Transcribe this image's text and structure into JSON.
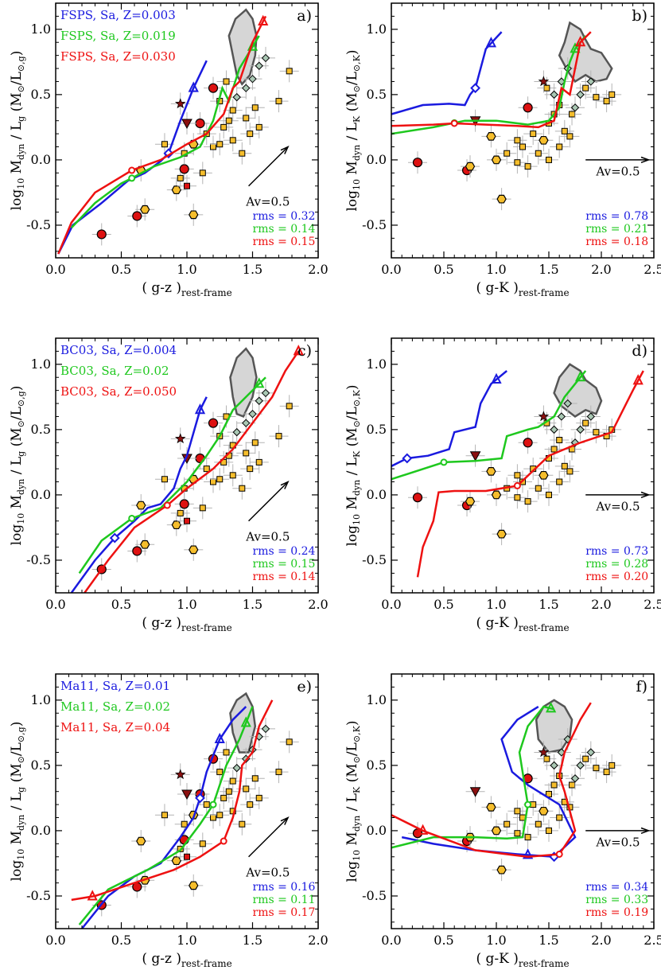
{
  "colors": {
    "blue": "#1a1adf",
    "green": "#1ec81e",
    "red": "#ee1111",
    "region": "#d6d6d6",
    "region_edge": "#555555",
    "galaxy": "#f6be2c",
    "errbar": "#b4b4b4"
  },
  "labels": {
    "xlabel_gz": "( g-z )",
    "xlabel_gK": "( g-K )",
    "x_sub": "rest-frame",
    "ylabel_g": "log10 Mdyn / Lg (M⊙/L⊙,g)",
    "ylabel_K": "log10 Mdyn / LK (M⊙/L⊙,K)",
    "av": "Av=0.5"
  },
  "chart_data": [
    {
      "panel": "a)",
      "type": "line",
      "xlabel": "( g-z )rest-frame",
      "ylabel": "log10 Mdyn / Lg (M⊙/L⊙,g)",
      "xlim": [
        0,
        2
      ],
      "ylim": [
        -0.75,
        1.2
      ],
      "xticks": [
        "0.0",
        "0.5",
        "1.0",
        "1.5",
        "2.0"
      ],
      "yticks": [
        "-0.5",
        "0.0",
        "0.5",
        "1.0"
      ],
      "legend": [
        "FSPS, Sa, Z=0.003",
        "FSPS, Sa, Z=0.019",
        "FSPS, Sa, Z=0.030"
      ],
      "rms": [
        "rms = 0.32",
        "rms = 0.14",
        "rms = 0.15"
      ],
      "series": [
        {
          "color": "blue",
          "x": [
            0.02,
            0.13,
            0.35,
            0.55,
            0.68,
            0.8,
            0.86,
            0.95,
            1.05,
            1.15
          ],
          "y": [
            -0.72,
            -0.5,
            -0.33,
            -0.16,
            -0.1,
            -0.01,
            0.05,
            0.3,
            0.55,
            0.76
          ],
          "marker_x": 0.86,
          "arrow_x": 1.05
        },
        {
          "color": "green",
          "x": [
            0.12,
            0.3,
            0.5,
            0.58,
            0.75,
            0.95,
            1.1,
            1.2,
            1.27,
            1.32,
            1.4,
            1.55
          ],
          "y": [
            -0.52,
            -0.33,
            -0.18,
            -0.14,
            -0.05,
            0.02,
            0.1,
            0.3,
            0.55,
            0.45,
            0.7,
            0.95
          ],
          "marker_x": 0.58,
          "arrow_x": 1.5
        },
        {
          "color": "red",
          "x": [
            0.02,
            0.12,
            0.3,
            0.58,
            0.8,
            1.0,
            1.15,
            1.28,
            1.35,
            1.4,
            1.5,
            1.6
          ],
          "y": [
            -0.72,
            -0.48,
            -0.25,
            -0.08,
            0.0,
            0.12,
            0.2,
            0.35,
            0.55,
            0.6,
            0.9,
            1.1
          ],
          "marker_x": 0.58,
          "arrow_x": 1.58
        }
      ],
      "av_vector": {
        "x0": 1.47,
        "y0": -0.2,
        "x1": 1.77,
        "y1": 0.1,
        "label": "Av=0.5"
      },
      "region": [
        [
          1.35,
          0.8
        ],
        [
          1.32,
          0.95
        ],
        [
          1.37,
          1.08
        ],
        [
          1.45,
          1.15
        ],
        [
          1.5,
          1.08
        ],
        [
          1.53,
          0.95
        ],
        [
          1.52,
          0.8
        ],
        [
          1.48,
          0.65
        ],
        [
          1.42,
          0.58
        ],
        [
          1.38,
          0.65
        ]
      ]
    },
    {
      "panel": "b)",
      "type": "line",
      "xlabel": "( g-K )rest-frame",
      "ylabel": "log10 Mdyn / LK (M⊙/L⊙,K)",
      "xlim": [
        0,
        2.5
      ],
      "ylim": [
        -0.75,
        1.2
      ],
      "xticks": [
        "0.0",
        "0.5",
        "1.0",
        "1.5",
        "2.0",
        "2.5"
      ],
      "yticks": [
        "-0.5",
        "0.0",
        "0.5",
        "1.0"
      ],
      "legend": [],
      "rms": [
        "rms = 0.78",
        "rms = 0.21",
        "rms = 0.18"
      ],
      "series": [
        {
          "color": "blue",
          "x": [
            0.0,
            0.3,
            0.55,
            0.7,
            0.75,
            0.8,
            0.85,
            0.9,
            1.05
          ],
          "y": [
            0.35,
            0.42,
            0.43,
            0.42,
            0.5,
            0.55,
            0.7,
            0.85,
            0.98
          ],
          "marker_x": 0.8,
          "arrow_x": 0.95
        },
        {
          "color": "green",
          "x": [
            0.0,
            0.4,
            0.7,
            1.0,
            1.3,
            1.5,
            1.6,
            1.65,
            1.7,
            1.75,
            1.85
          ],
          "y": [
            0.2,
            0.25,
            0.3,
            0.3,
            0.27,
            0.3,
            0.4,
            0.6,
            0.75,
            0.85,
            0.95
          ],
          "marker_x": 0.6,
          "arrow_x": 1.75
        },
        {
          "color": "red",
          "x": [
            0.0,
            0.4,
            0.6,
            0.9,
            1.2,
            1.4,
            1.55,
            1.62,
            1.7,
            1.75,
            1.8,
            1.9
          ],
          "y": [
            0.26,
            0.27,
            0.28,
            0.27,
            0.26,
            0.25,
            0.3,
            0.55,
            0.5,
            0.7,
            0.9,
            0.98
          ],
          "marker_x": 0.6,
          "arrow_x": 1.8
        }
      ],
      "av_vector": {
        "x0": 1.85,
        "y0": 0.0,
        "x1": 2.45,
        "y1": 0.0,
        "label": "Av=0.5"
      },
      "region": [
        [
          1.6,
          0.8
        ],
        [
          1.65,
          0.9
        ],
        [
          1.7,
          1.05
        ],
        [
          1.8,
          1.0
        ],
        [
          1.85,
          0.92
        ],
        [
          1.9,
          0.85
        ],
        [
          2.0,
          0.82
        ],
        [
          2.1,
          0.7
        ],
        [
          2.05,
          0.62
        ],
        [
          1.95,
          0.6
        ],
        [
          1.85,
          0.65
        ],
        [
          1.75,
          0.6
        ],
        [
          1.68,
          0.68
        ]
      ]
    },
    {
      "panel": "c)",
      "type": "line",
      "xlabel": "( g-z )rest-frame",
      "ylabel": "log10 Mdyn / Lg (M⊙/L⊙,g)",
      "xlim": [
        0,
        2
      ],
      "ylim": [
        -0.75,
        1.2
      ],
      "xticks": [
        "0.0",
        "0.5",
        "1.0",
        "1.5",
        "2.0"
      ],
      "yticks": [
        "-0.5",
        "0.0",
        "0.5",
        "1.0"
      ],
      "legend": [
        "BC03, Sa, Z=0.004",
        "BC03, Sa, Z=0.02",
        "BC03, Sa, Z=0.050"
      ],
      "rms": [
        "rms = 0.24",
        "rms = 0.15",
        "rms = 0.14"
      ],
      "series": [
        {
          "color": "blue",
          "x": [
            0.12,
            0.3,
            0.45,
            0.6,
            0.7,
            0.8,
            0.9,
            0.95,
            1.0,
            1.1,
            1.15
          ],
          "y": [
            -0.75,
            -0.5,
            -0.33,
            -0.2,
            -0.1,
            -0.07,
            0.05,
            0.2,
            0.3,
            0.65,
            0.75
          ],
          "marker_x": 0.45,
          "arrow_x": 1.1
        },
        {
          "color": "green",
          "x": [
            0.18,
            0.35,
            0.58,
            0.8,
            1.0,
            1.15,
            1.25,
            1.35,
            1.5,
            1.6
          ],
          "y": [
            -0.6,
            -0.35,
            -0.18,
            -0.1,
            0.1,
            0.3,
            0.45,
            0.65,
            0.8,
            0.9
          ],
          "marker_x": 0.58,
          "arrow_x": 1.55
        },
        {
          "color": "red",
          "x": [
            0.22,
            0.4,
            0.6,
            0.85,
            1.0,
            1.2,
            1.35,
            1.5,
            1.65,
            1.75,
            1.85
          ],
          "y": [
            -0.75,
            -0.5,
            -0.25,
            -0.08,
            0.05,
            0.2,
            0.35,
            0.55,
            0.75,
            0.95,
            1.1
          ],
          "marker_x": 0.85,
          "arrow_x": 1.85
        }
      ],
      "av_vector": {
        "x0": 1.47,
        "y0": -0.2,
        "x1": 1.77,
        "y1": 0.1,
        "label": "Av=0.5"
      },
      "region": [
        [
          1.35,
          0.75
        ],
        [
          1.33,
          0.9
        ],
        [
          1.38,
          1.05
        ],
        [
          1.45,
          1.12
        ],
        [
          1.5,
          1.05
        ],
        [
          1.53,
          0.9
        ],
        [
          1.5,
          0.75
        ],
        [
          1.43,
          0.6
        ],
        [
          1.38,
          0.62
        ]
      ]
    },
    {
      "panel": "d)",
      "type": "line",
      "xlabel": "( g-K )rest-frame",
      "ylabel": "log10 Mdyn / LK (M⊙/L⊙,K)",
      "xlim": [
        0,
        2.5
      ],
      "ylim": [
        -0.75,
        1.2
      ],
      "xticks": [
        "0.0",
        "0.5",
        "1.0",
        "1.5",
        "2.0",
        "2.5"
      ],
      "yticks": [
        "-0.5",
        "0.0",
        "0.5",
        "1.0"
      ],
      "legend": [],
      "rms": [
        "rms = 0.73",
        "rms = 0.28",
        "rms = 0.20"
      ],
      "series": [
        {
          "color": "blue",
          "x": [
            0.0,
            0.15,
            0.35,
            0.55,
            0.6,
            0.8,
            0.85,
            0.95,
            1.1
          ],
          "y": [
            0.22,
            0.28,
            0.3,
            0.35,
            0.48,
            0.52,
            0.7,
            0.85,
            0.95
          ],
          "marker_x": 0.15,
          "arrow_x": 1.0
        },
        {
          "color": "green",
          "x": [
            0.0,
            0.5,
            0.8,
            1.05,
            1.1,
            1.3,
            1.4,
            1.55,
            1.65,
            1.75,
            1.85
          ],
          "y": [
            0.12,
            0.25,
            0.26,
            0.28,
            0.45,
            0.5,
            0.52,
            0.6,
            0.75,
            0.85,
            0.95
          ],
          "marker_x": 0.5,
          "arrow_x": 1.8
        },
        {
          "color": "red",
          "x": [
            0.25,
            0.3,
            0.4,
            0.45,
            0.6,
            0.9,
            1.2,
            1.5,
            1.8,
            2.1,
            2.3,
            2.4
          ],
          "y": [
            -0.63,
            -0.4,
            -0.2,
            0.02,
            0.03,
            0.03,
            0.07,
            0.3,
            0.4,
            0.48,
            0.8,
            0.95
          ],
          "marker_x": 1.2,
          "arrow_x": 2.35
        }
      ],
      "av_vector": {
        "x0": 1.85,
        "y0": 0.0,
        "x1": 2.45,
        "y1": 0.0,
        "label": "Av=0.5"
      },
      "region": [
        [
          1.55,
          0.78
        ],
        [
          1.6,
          0.9
        ],
        [
          1.7,
          1.0
        ],
        [
          1.8,
          0.95
        ],
        [
          1.85,
          0.88
        ],
        [
          1.95,
          0.82
        ],
        [
          2.0,
          0.72
        ],
        [
          1.95,
          0.62
        ],
        [
          1.85,
          0.65
        ],
        [
          1.75,
          0.6
        ],
        [
          1.62,
          0.68
        ]
      ]
    },
    {
      "panel": "e)",
      "type": "line",
      "xlabel": "( g-z )rest-frame",
      "ylabel": "log10 Mdyn / Lg (M⊙/L⊙,g)",
      "xlim": [
        0,
        2
      ],
      "ylim": [
        -0.75,
        1.2
      ],
      "xticks": [
        "0.0",
        "0.5",
        "1.0",
        "1.5",
        "2.0"
      ],
      "yticks": [
        "-0.5",
        "0.0",
        "0.5",
        "1.0"
      ],
      "legend": [
        "Ma11, Sa, Z=0.01",
        "Ma11, Sa, Z=0.02",
        "Ma11, Sa, Z=0.04"
      ],
      "rms": [
        "rms = 0.16",
        "rms = 0.11",
        "rms = 0.17"
      ],
      "series": [
        {
          "color": "blue",
          "x": [
            0.2,
            0.4,
            0.6,
            0.8,
            0.95,
            1.05,
            1.1,
            1.15,
            1.25,
            1.35,
            1.45
          ],
          "y": [
            -0.75,
            -0.5,
            -0.35,
            -0.25,
            -0.05,
            0.1,
            0.25,
            0.45,
            0.7,
            0.85,
            0.95
          ],
          "marker_x": 1.1,
          "arrow_x": 1.25
        },
        {
          "color": "green",
          "x": [
            0.18,
            0.4,
            0.7,
            0.95,
            1.1,
            1.2,
            1.25,
            1.3,
            1.4,
            1.5
          ],
          "y": [
            -0.72,
            -0.45,
            -0.3,
            -0.15,
            0.05,
            0.2,
            0.35,
            0.5,
            0.7,
            0.95
          ],
          "marker_x": 1.2,
          "arrow_x": 1.45
        },
        {
          "color": "red",
          "x": [
            0.12,
            0.3,
            0.6,
            0.9,
            1.1,
            1.28,
            1.35,
            1.4,
            1.42,
            1.5,
            1.55,
            1.65
          ],
          "y": [
            -0.53,
            -0.5,
            -0.4,
            -0.3,
            -0.2,
            -0.08,
            0.1,
            0.3,
            0.5,
            0.6,
            0.8,
            1.0
          ],
          "marker_x": 1.28,
          "arrow_x": 0.28
        }
      ],
      "av_vector": {
        "x0": 1.47,
        "y0": -0.2,
        "x1": 1.77,
        "y1": 0.1,
        "label": "Av=0.5"
      },
      "region": [
        [
          1.35,
          0.75
        ],
        [
          1.33,
          0.9
        ],
        [
          1.38,
          1.0
        ],
        [
          1.45,
          1.05
        ],
        [
          1.5,
          0.95
        ],
        [
          1.52,
          0.8
        ],
        [
          1.47,
          0.6
        ],
        [
          1.4,
          0.6
        ]
      ]
    },
    {
      "panel": "f)",
      "type": "line",
      "xlabel": "( g-K )rest-frame",
      "ylabel": "log10 Mdyn / LK (M⊙/L⊙,K)",
      "xlim": [
        0,
        2.5
      ],
      "ylim": [
        -0.75,
        1.2
      ],
      "xticks": [
        "0.0",
        "0.5",
        "1.0",
        "1.5",
        "2.0",
        "2.5"
      ],
      "yticks": [
        "-0.5",
        "0.0",
        "0.5",
        "1.0"
      ],
      "legend": [],
      "rms": [
        "rms = 0.34",
        "rms = 0.33",
        "rms = 0.19"
      ],
      "series": [
        {
          "color": "blue",
          "x": [
            0.1,
            0.4,
            0.8,
            1.2,
            1.55,
            1.75,
            1.6,
            1.3,
            1.15,
            1.05,
            1.2,
            1.4
          ],
          "y": [
            -0.05,
            -0.1,
            -0.15,
            -0.18,
            -0.2,
            -0.05,
            0.2,
            0.35,
            0.45,
            0.7,
            0.85,
            0.95
          ],
          "marker_x": 1.55,
          "arrow_x": 1.3
        },
        {
          "color": "green",
          "x": [
            0.0,
            0.4,
            0.8,
            1.1,
            1.25,
            1.3,
            1.25,
            1.22,
            1.3,
            1.45,
            1.55
          ],
          "y": [
            -0.13,
            -0.05,
            -0.05,
            -0.06,
            -0.05,
            0.2,
            0.45,
            0.6,
            0.8,
            0.95,
            0.93
          ],
          "marker_x": 1.3,
          "arrow_x": 1.52
        },
        {
          "color": "red",
          "x": [
            0.0,
            0.3,
            0.8,
            1.3,
            1.6,
            1.75,
            1.65,
            1.6,
            1.65,
            1.8,
            1.9
          ],
          "y": [
            0.12,
            0.0,
            -0.15,
            -0.2,
            -0.18,
            0.0,
            0.3,
            0.42,
            0.6,
            0.85,
            0.98
          ],
          "marker_x": 1.6,
          "arrow_x": 0.3
        }
      ],
      "av_vector": {
        "x0": 1.85,
        "y0": 0.0,
        "x1": 2.45,
        "y1": 0.0,
        "label": "Av=0.5"
      },
      "region": [
        [
          1.4,
          0.7
        ],
        [
          1.38,
          0.85
        ],
        [
          1.45,
          0.95
        ],
        [
          1.55,
          1.0
        ],
        [
          1.65,
          0.95
        ],
        [
          1.72,
          0.85
        ],
        [
          1.7,
          0.72
        ],
        [
          1.62,
          0.62
        ],
        [
          1.5,
          0.6
        ]
      ]
    }
  ]
}
